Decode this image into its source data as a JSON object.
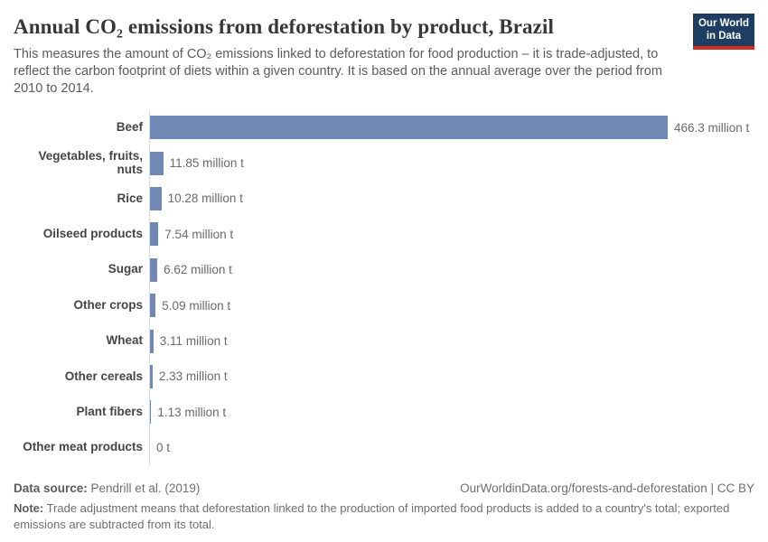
{
  "header": {
    "title": "Annual CO₂ emissions from deforestation by product, Brazil",
    "subtitle": "This measures the amount of CO₂ emissions linked to deforestation for food production – it is trade-adjusted, to reflect the carbon footprint of diets within a given country. It is based on the annual average over the period from 2010 to 2014.",
    "logo": {
      "line1": "Our World",
      "line2": "in Data"
    }
  },
  "chart_data": {
    "type": "bar",
    "orientation": "horizontal",
    "title": "Annual CO₂ emissions from deforestation by product, Brazil",
    "categories": [
      "Beef",
      "Vegetables, fruits, nuts",
      "Rice",
      "Oilseed products",
      "Sugar",
      "Other crops",
      "Wheat",
      "Other cereals",
      "Plant fibers",
      "Other meat products"
    ],
    "values": [
      466.3,
      11.85,
      10.28,
      7.54,
      6.62,
      5.09,
      3.11,
      2.33,
      1.13,
      0
    ],
    "value_labels": [
      "466.3 million t",
      "11.85 million t",
      "10.28 million t",
      "7.54 million t",
      "6.62 million t",
      "5.09 million t",
      "3.11 million t",
      "2.33 million t",
      "1.13 million t",
      "0 t"
    ],
    "unit": "million t",
    "xlim": [
      0,
      466.3
    ],
    "grid": false,
    "legend": "none",
    "bar_color": "#7088b3"
  },
  "footer": {
    "source_label": "Data source:",
    "source_value": " Pendrill et al. (2019)",
    "attribution": "OurWorldinData.org/forests-and-deforestation | CC BY",
    "note_label": "Note:",
    "note_value": " Trade adjustment means that deforestation linked to the production of imported food products is added to a country's total; exported emissions are subtracted from its total."
  },
  "colors": {
    "bar": "#7088b3",
    "logo_background": "#1d3d63",
    "logo_underline": "#d7291f",
    "title_text": "#373737",
    "subtitle_text": "#5b5b5b",
    "axis_line": "#dcdcdc",
    "value_text": "#6a6a6a"
  }
}
